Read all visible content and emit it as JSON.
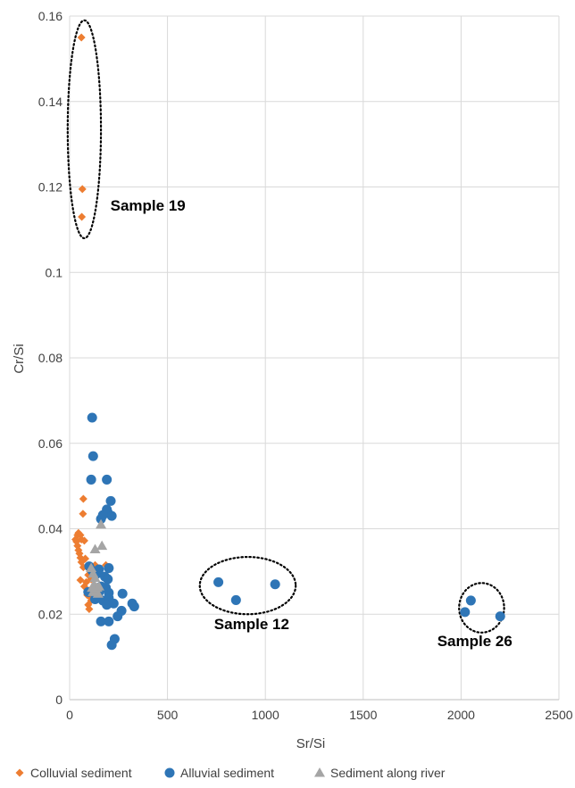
{
  "chart_data": {
    "type": "scatter",
    "title": "",
    "xlabel": "Sr/Si",
    "ylabel": "Cr/Si",
    "xlim": [
      0,
      2500
    ],
    "ylim": [
      0,
      0.16
    ],
    "x_ticks": [
      "0",
      "500",
      "1000",
      "1500",
      "2000",
      "2500"
    ],
    "y_ticks": [
      "0",
      "0.02",
      "0.04",
      "0.06",
      "0.08",
      "0.1",
      "0.12",
      "0.14",
      "0.16"
    ],
    "grid": "vertical and horizontal major gridlines",
    "legend_position": "bottom",
    "series": [
      {
        "name": "Colluvial sediment",
        "marker": "diamond",
        "color": "#ED7D31",
        "points": [
          [
            60,
            0.155
          ],
          [
            65,
            0.1195
          ],
          [
            62,
            0.113
          ],
          [
            70,
            0.047
          ],
          [
            68,
            0.0435
          ],
          [
            30,
            0.0375
          ],
          [
            35,
            0.037
          ],
          [
            40,
            0.0385
          ],
          [
            45,
            0.039
          ],
          [
            55,
            0.0385
          ],
          [
            60,
            0.0375
          ],
          [
            75,
            0.0372
          ],
          [
            40,
            0.036
          ],
          [
            45,
            0.035
          ],
          [
            50,
            0.0342
          ],
          [
            55,
            0.0332
          ],
          [
            60,
            0.0322
          ],
          [
            80,
            0.033
          ],
          [
            70,
            0.031
          ],
          [
            90,
            0.0312
          ],
          [
            100,
            0.0305
          ],
          [
            95,
            0.0292
          ],
          [
            110,
            0.0282
          ],
          [
            85,
            0.0275
          ],
          [
            55,
            0.028
          ],
          [
            75,
            0.0265
          ],
          [
            120,
            0.026
          ],
          [
            100,
            0.0255
          ],
          [
            90,
            0.0245
          ],
          [
            105,
            0.024
          ],
          [
            95,
            0.0222
          ],
          [
            110,
            0.0232
          ],
          [
            100,
            0.0212
          ],
          [
            185,
            0.0315
          ],
          [
            130,
            0.0315
          ]
        ]
      },
      {
        "name": "Alluvial sediment",
        "marker": "circle",
        "color": "#2E75B6",
        "points": [
          [
            115,
            0.066
          ],
          [
            120,
            0.057
          ],
          [
            110,
            0.0515
          ],
          [
            190,
            0.0515
          ],
          [
            210,
            0.0465
          ],
          [
            190,
            0.0445
          ],
          [
            195,
            0.0438
          ],
          [
            215,
            0.043
          ],
          [
            160,
            0.0423
          ],
          [
            170,
            0.0432
          ],
          [
            100,
            0.0312
          ],
          [
            115,
            0.0302
          ],
          [
            150,
            0.0305
          ],
          [
            200,
            0.0308
          ],
          [
            140,
            0.0295
          ],
          [
            180,
            0.0288
          ],
          [
            195,
            0.0282
          ],
          [
            160,
            0.0265
          ],
          [
            185,
            0.0262
          ],
          [
            200,
            0.025
          ],
          [
            150,
            0.0252
          ],
          [
            95,
            0.0252
          ],
          [
            120,
            0.0255
          ],
          [
            130,
            0.0235
          ],
          [
            170,
            0.0232
          ],
          [
            200,
            0.0238
          ],
          [
            190,
            0.0222
          ],
          [
            225,
            0.0225
          ],
          [
            270,
            0.0248
          ],
          [
            265,
            0.0208
          ],
          [
            245,
            0.0195
          ],
          [
            320,
            0.0225
          ],
          [
            330,
            0.0218
          ],
          [
            160,
            0.0183
          ],
          [
            200,
            0.0183
          ],
          [
            230,
            0.0142
          ],
          [
            215,
            0.0128
          ],
          [
            760,
            0.0275
          ],
          [
            850,
            0.0233
          ],
          [
            1050,
            0.027
          ],
          [
            2050,
            0.0232
          ],
          [
            2020,
            0.0205
          ],
          [
            2200,
            0.0195
          ]
        ]
      },
      {
        "name": "Sediment along river",
        "marker": "triangle",
        "color": "#A5A5A5",
        "points": [
          [
            160,
            0.041
          ],
          [
            165,
            0.036
          ],
          [
            130,
            0.0352
          ],
          [
            110,
            0.0308
          ],
          [
            120,
            0.0295
          ],
          [
            130,
            0.0285
          ],
          [
            125,
            0.027
          ],
          [
            140,
            0.0262
          ],
          [
            135,
            0.0255
          ],
          [
            145,
            0.0248
          ],
          [
            120,
            0.0252
          ],
          [
            150,
            0.0265
          ],
          [
            115,
            0.0262
          ]
        ]
      }
    ],
    "annotations": [
      {
        "text": "Sample 19",
        "x": 400,
        "y": 0.1145,
        "ellipse": {
          "cx": 75,
          "cy": 0.1335,
          "rx": 85,
          "ry": 0.0255
        }
      },
      {
        "text": "Sample 12",
        "x": 930,
        "y": 0.0165,
        "ellipse": {
          "cx": 910,
          "cy": 0.0267,
          "rx": 245,
          "ry": 0.0067
        }
      },
      {
        "text": "Sample 26",
        "x": 2070,
        "y": 0.0125,
        "ellipse": {
          "cx": 2105,
          "cy": 0.0215,
          "rx": 115,
          "ry": 0.0058
        }
      }
    ]
  }
}
